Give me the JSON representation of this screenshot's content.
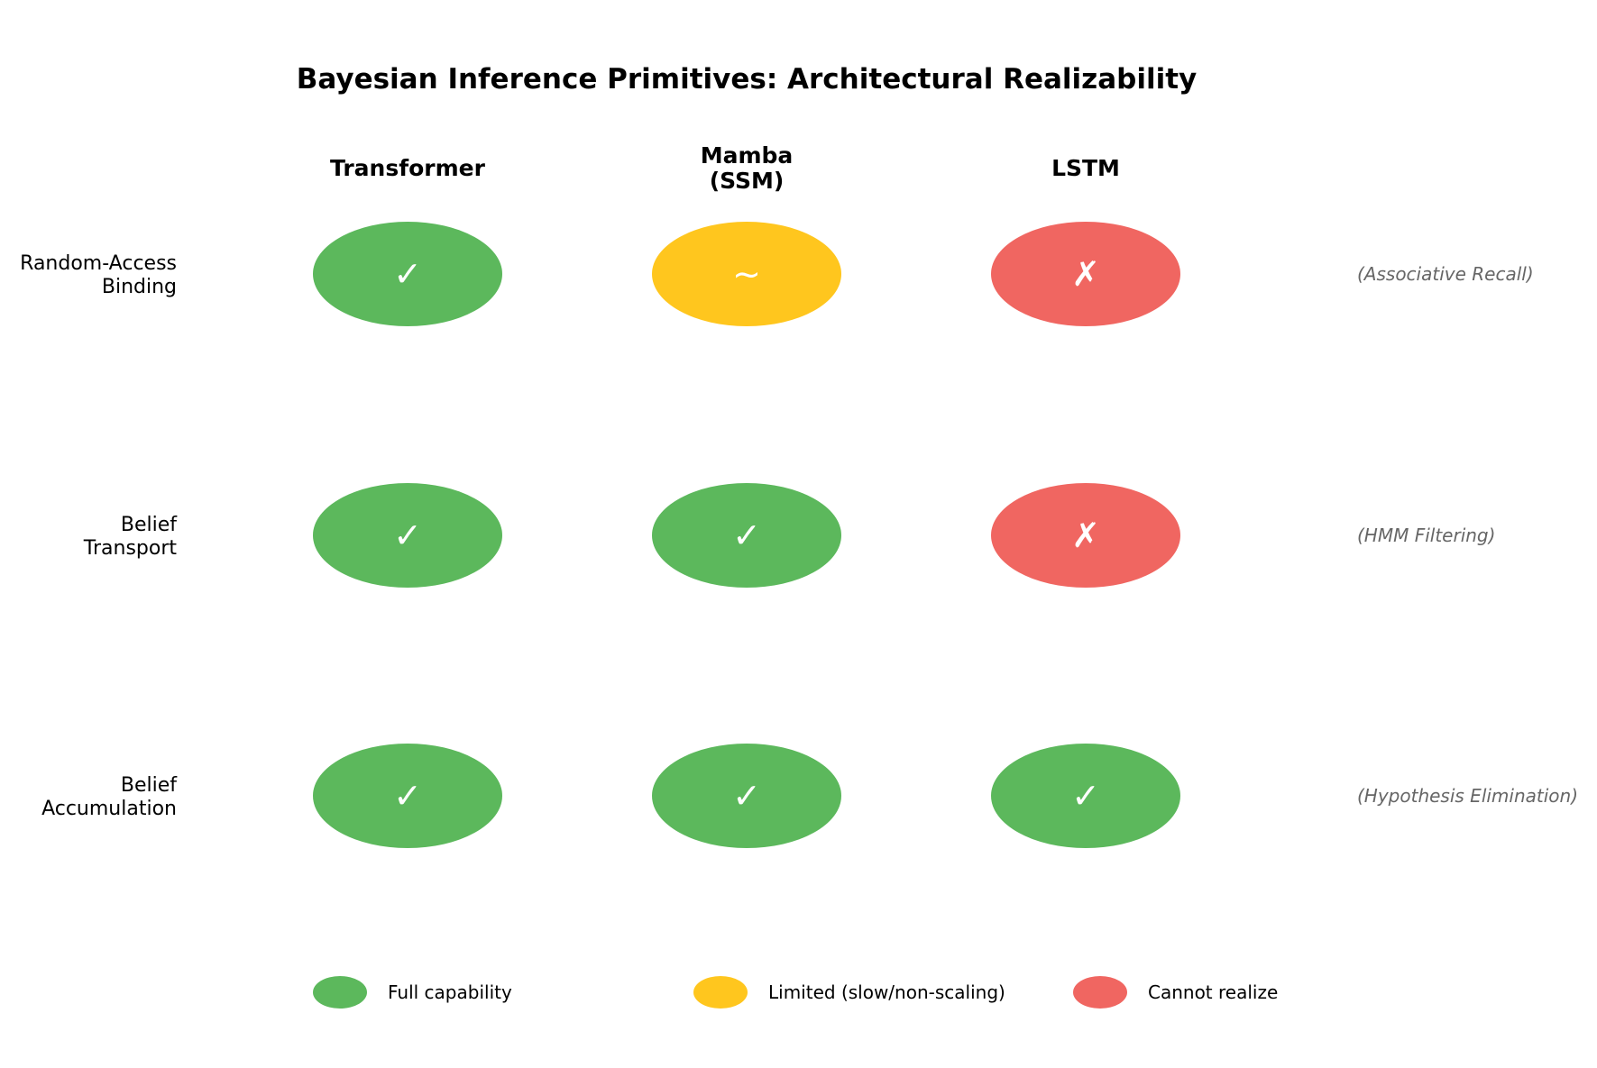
{
  "title": "Bayesian Inference Primitives: Architectural Realizability",
  "colors": {
    "full": "#5cb85c",
    "limited": "#ffc61e",
    "none": "#f06661"
  },
  "symbols": {
    "full": "✓",
    "limited": "~",
    "none": "✗"
  },
  "columns": [
    {
      "lines": [
        "Transformer"
      ]
    },
    {
      "lines": [
        "Mamba",
        "(SSM)"
      ]
    },
    {
      "lines": [
        "LSTM"
      ]
    }
  ],
  "rows": [
    {
      "lines": [
        "Random-Access",
        "Binding"
      ],
      "note": "(Associative Recall)",
      "cells": [
        "full",
        "limited",
        "none"
      ]
    },
    {
      "lines": [
        "Belief",
        "Transport"
      ],
      "note": "(HMM Filtering)",
      "cells": [
        "full",
        "full",
        "none"
      ]
    },
    {
      "lines": [
        "Belief",
        "Accumulation"
      ],
      "note": "(Hypothesis Elimination)",
      "cells": [
        "full",
        "full",
        "full"
      ]
    }
  ],
  "legend": [
    {
      "status": "full",
      "label": "Full capability"
    },
    {
      "status": "limited",
      "label": "Limited (slow/non-scaling)"
    },
    {
      "status": "none",
      "label": "Cannot realize"
    }
  ]
}
